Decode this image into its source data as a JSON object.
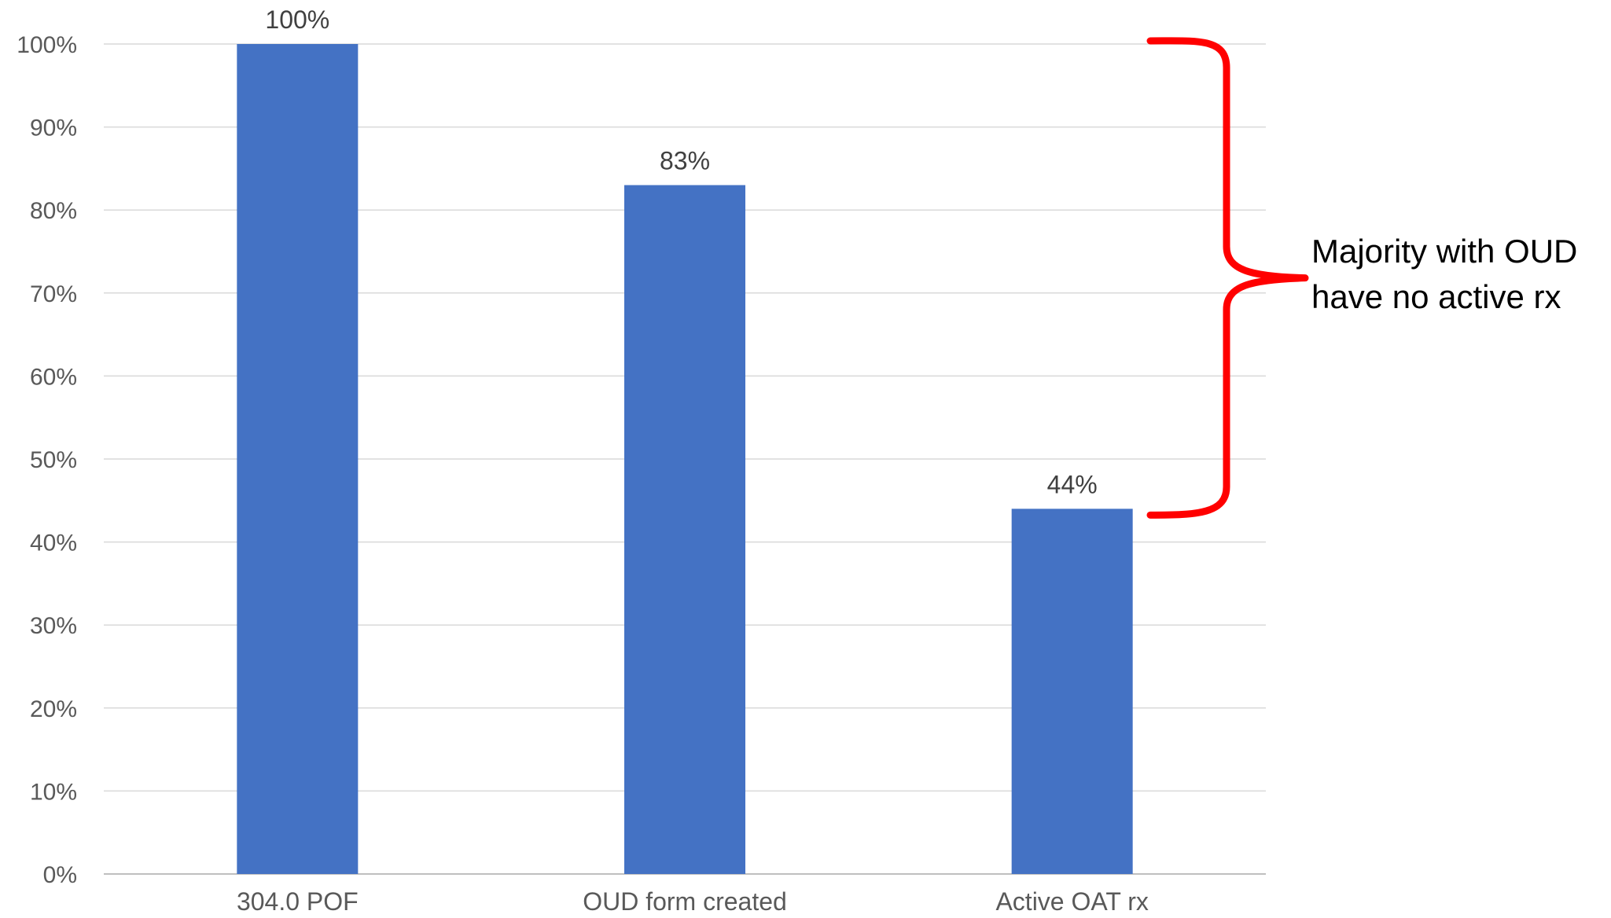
{
  "chart_data": {
    "type": "bar",
    "categories": [
      "304.0 POF",
      "OUD form created",
      "Active OAT rx"
    ],
    "series": [
      {
        "values": [
          100,
          83,
          44
        ],
        "color": "#4472c4"
      }
    ],
    "data_labels": [
      "100%",
      "83%",
      "44%"
    ],
    "title": "",
    "xlabel": "",
    "ylabel": "",
    "ylim": [
      0,
      100
    ],
    "y_ticks": [
      0,
      10,
      20,
      30,
      40,
      50,
      60,
      70,
      80,
      90,
      100
    ],
    "y_tick_labels": [
      "0%",
      "10%",
      "20%",
      "30%",
      "40%",
      "50%",
      "60%",
      "70%",
      "80%",
      "90%",
      "100%"
    ],
    "grid": true,
    "legend": "none",
    "annotation": {
      "lines": [
        "Majority with OUD",
        "have no active rx"
      ],
      "bracket_color": "#ff0000",
      "spans": [
        44,
        100
      ]
    }
  }
}
